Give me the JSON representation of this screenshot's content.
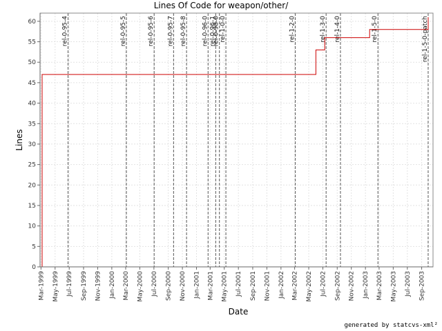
{
  "chart_data": {
    "type": "line",
    "title": "Lines Of Code for weapon/other/",
    "xlabel": "Date",
    "ylabel": "Lines",
    "ylim": [
      0,
      62
    ],
    "y_ticks": [
      0,
      5,
      10,
      15,
      20,
      25,
      30,
      35,
      40,
      45,
      50,
      55,
      60
    ],
    "x_range": [
      "1999-02-25",
      "2003-10-20"
    ],
    "x_ticks": [
      {
        "date": "1999-03-01",
        "label": "Mar-1999"
      },
      {
        "date": "1999-05-01",
        "label": "May-1999"
      },
      {
        "date": "1999-07-01",
        "label": "Jul-1999"
      },
      {
        "date": "1999-09-01",
        "label": "Sep-1999"
      },
      {
        "date": "1999-11-01",
        "label": "Nov-1999"
      },
      {
        "date": "2000-01-01",
        "label": "Jan-2000"
      },
      {
        "date": "2000-03-01",
        "label": "Mar-2000"
      },
      {
        "date": "2000-05-01",
        "label": "May-2000"
      },
      {
        "date": "2000-07-01",
        "label": "Jul-2000"
      },
      {
        "date": "2000-09-01",
        "label": "Sep-2000"
      },
      {
        "date": "2000-11-01",
        "label": "Nov-2000"
      },
      {
        "date": "2001-01-01",
        "label": "Jan-2001"
      },
      {
        "date": "2001-03-01",
        "label": "Mar-2001"
      },
      {
        "date": "2001-05-01",
        "label": "May-2001"
      },
      {
        "date": "2001-07-01",
        "label": "Jul-2001"
      },
      {
        "date": "2001-09-01",
        "label": "Sep-2001"
      },
      {
        "date": "2001-11-01",
        "label": "Nov-2001"
      },
      {
        "date": "2002-01-01",
        "label": "Jan-2002"
      },
      {
        "date": "2002-03-01",
        "label": "Mar-2002"
      },
      {
        "date": "2002-05-01",
        "label": "May-2002"
      },
      {
        "date": "2002-07-01",
        "label": "Jul-2002"
      },
      {
        "date": "2002-09-01",
        "label": "Sep-2002"
      },
      {
        "date": "2002-11-01",
        "label": "Nov-2002"
      },
      {
        "date": "2003-01-01",
        "label": "Jan-2003"
      },
      {
        "date": "2003-03-01",
        "label": "Mar-2003"
      },
      {
        "date": "2003-05-01",
        "label": "May-2003"
      },
      {
        "date": "2003-07-01",
        "label": "Jul-2003"
      },
      {
        "date": "2003-09-01",
        "label": "Sep-2003"
      }
    ],
    "series": [
      {
        "color": "#cc0000",
        "points": [
          {
            "x": "1999-03-06",
            "y": 0
          },
          {
            "x": "1999-03-06",
            "y": 47
          },
          {
            "x": "2002-06-01",
            "y": 47
          },
          {
            "x": "2002-06-01",
            "y": 53
          },
          {
            "x": "2002-07-09",
            "y": 53
          },
          {
            "x": "2002-07-09",
            "y": 56
          },
          {
            "x": "2003-01-19",
            "y": 56
          },
          {
            "x": "2003-01-19",
            "y": 58
          },
          {
            "x": "2003-09-29",
            "y": 58
          },
          {
            "x": "2003-09-29",
            "y": 61
          }
        ]
      }
    ],
    "markers": [
      {
        "date": "1999-06-26",
        "label": "rel-0-95-4"
      },
      {
        "date": "2000-03-04",
        "label": "rel-0-95-5"
      },
      {
        "date": "2000-07-02",
        "label": "rel-0-95-6"
      },
      {
        "date": "2000-09-24",
        "label": "rel-0-95-7"
      },
      {
        "date": "2000-11-19",
        "label": "rel-0-95-8"
      },
      {
        "date": "2001-02-20",
        "label": "rel-0-96-0"
      },
      {
        "date": "2001-03-25",
        "label": "rel-0-96-1"
      },
      {
        "date": "2001-04-10",
        "label": "rel-0-98-0"
      },
      {
        "date": "2001-05-08",
        "label": "rel-1-0-0"
      },
      {
        "date": "2002-03-04",
        "label": "rel-1-2-0"
      },
      {
        "date": "2002-07-15",
        "label": "rel-1-3-0"
      },
      {
        "date": "2002-09-15",
        "label": "rel-1-4-0"
      },
      {
        "date": "2003-02-24",
        "label": "rel-1-5-0"
      },
      {
        "date": "2003-09-29",
        "label": "rel-1-5-0-patch"
      }
    ],
    "grid": true
  },
  "footer": "generated by statcvs-xml²"
}
